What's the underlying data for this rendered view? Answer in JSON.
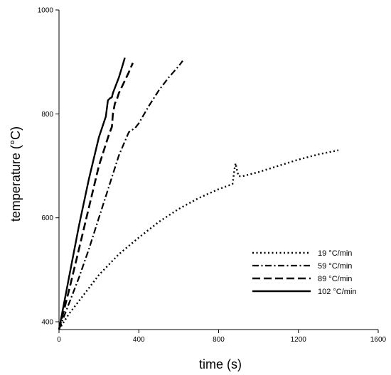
{
  "chart_data": {
    "type": "line",
    "title": "",
    "xlabel": "time (s)",
    "ylabel": "temperature (°C)",
    "xlim": [
      0,
      1600
    ],
    "ylim": [
      385,
      1000
    ],
    "xticks": [
      "0",
      "400",
      "800",
      "1200",
      "1600"
    ],
    "yticks": [
      "400",
      "600",
      "800",
      "1000"
    ],
    "xtick_values": [
      0,
      400,
      800,
      1200,
      1600
    ],
    "ytick_values": [
      400,
      600,
      800,
      1000
    ],
    "grid": false,
    "legend_position": "bottom-right",
    "series": [
      {
        "name": "19 °C/min",
        "style": "dotted",
        "x": [
          0,
          50,
          100,
          200,
          300,
          400,
          500,
          600,
          700,
          800,
          870,
          880,
          885,
          893,
          900,
          920,
          1000,
          1100,
          1200,
          1300,
          1400
        ],
        "y": [
          385,
          415,
          440,
          490,
          530,
          562,
          592,
          617,
          638,
          655,
          665,
          695,
          705,
          690,
          680,
          680,
          688,
          700,
          712,
          722,
          730
        ]
      },
      {
        "name": "59 °C/min",
        "style": "dash-dot",
        "x": [
          0,
          50,
          100,
          150,
          200,
          250,
          300,
          350,
          370,
          380,
          400,
          450,
          500,
          550,
          600,
          620
        ],
        "y": [
          385,
          435,
          485,
          540,
          600,
          660,
          720,
          765,
          770,
          772,
          782,
          815,
          845,
          870,
          892,
          902
        ]
      },
      {
        "name": "89 °C/min",
        "style": "dashed",
        "x": [
          0,
          50,
          100,
          150,
          200,
          250,
          265,
          270,
          280,
          290,
          300,
          350,
          370
        ],
        "y": [
          385,
          460,
          540,
          620,
          700,
          760,
          775,
          800,
          820,
          828,
          840,
          880,
          898
        ]
      },
      {
        "name": "102 °C/min",
        "style": "solid",
        "x": [
          0,
          50,
          100,
          150,
          200,
          235,
          245,
          255,
          265,
          270,
          300,
          320,
          330
        ],
        "y": [
          385,
          485,
          585,
          675,
          755,
          795,
          826,
          830,
          832,
          840,
          870,
          895,
          908
        ]
      }
    ]
  }
}
